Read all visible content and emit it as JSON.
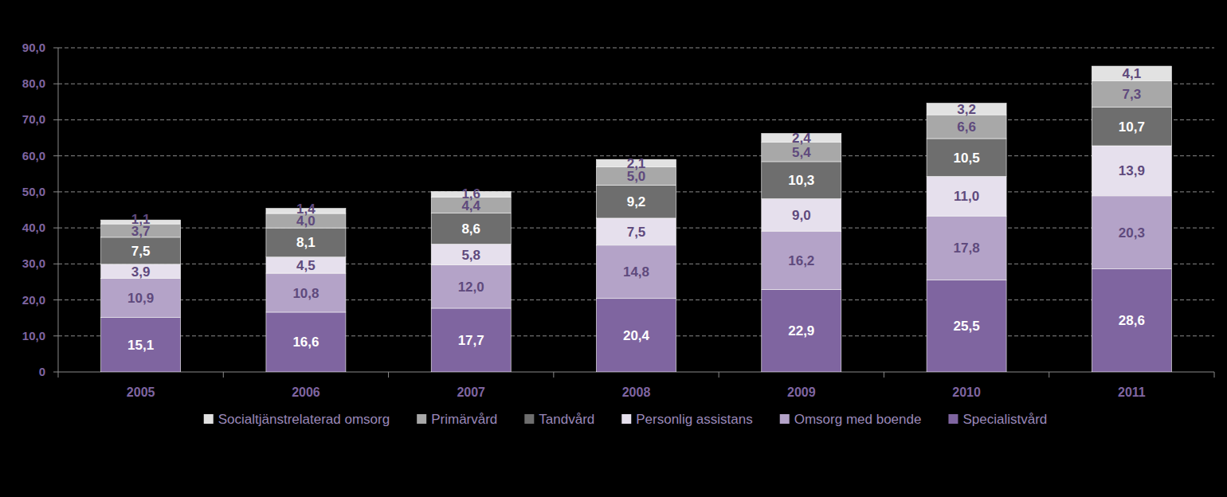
{
  "chart_data": {
    "type": "bar",
    "stacked": true,
    "data_labels": true,
    "grid": true,
    "legend": "bottom",
    "categories": [
      "2005",
      "2006",
      "2007",
      "2008",
      "2009",
      "2010",
      "2011"
    ],
    "ylim": [
      0,
      90
    ],
    "yticks": [
      0,
      {
        "value": 10,
        "label": "10,0"
      },
      {
        "value": 20,
        "label": "20,0"
      },
      {
        "value": 30,
        "label": "30,0"
      },
      {
        "value": 40,
        "label": "40,0"
      },
      {
        "value": 50,
        "label": "50,0"
      },
      {
        "value": 60,
        "label": "60,0"
      },
      {
        "value": 70,
        "label": "70,0"
      },
      {
        "value": 80,
        "label": "80,0"
      },
      {
        "value": 90,
        "label": "90,0"
      }
    ],
    "series": [
      {
        "name": "Specialistvård",
        "color": "#7f65a0",
        "values": [
          15.1,
          16.6,
          17.7,
          20.4,
          22.9,
          25.5,
          28.6
        ],
        "value_labels": [
          "15,1",
          "16,6",
          "17,7",
          "20,4",
          "22,9",
          "25,5",
          "28,6"
        ]
      },
      {
        "name": "Omsorg med boende",
        "color": "#b4a3c8",
        "values": [
          10.9,
          10.8,
          12.0,
          14.8,
          16.2,
          17.8,
          20.3
        ],
        "value_labels": [
          "10,9",
          "10,8",
          "12,0",
          "14,8",
          "16,2",
          "17,8",
          "20,3"
        ]
      },
      {
        "name": "Personlig assistans",
        "color": "#e6e0ed",
        "values": [
          3.9,
          4.5,
          5.8,
          7.5,
          9.0,
          11.0,
          13.9
        ],
        "value_labels": [
          "3,9",
          "4,5",
          "5,8",
          "7,5",
          "9,0",
          "11,0",
          "13,9"
        ]
      },
      {
        "name": "Tandvård",
        "color": "#6e6e6e",
        "values": [
          7.5,
          8.1,
          8.6,
          9.2,
          10.3,
          10.5,
          10.7
        ],
        "value_labels": [
          "7,5",
          "8,1",
          "8,6",
          "9,2",
          "10,3",
          "10,5",
          "10,7"
        ]
      },
      {
        "name": "Primärvård",
        "color": "#a8a8a8",
        "values": [
          3.7,
          4.0,
          4.4,
          5.0,
          5.4,
          6.6,
          7.3
        ],
        "value_labels": [
          "3,7",
          "4,0",
          "4,4",
          "5,0",
          "5,4",
          "6,6",
          "7,3"
        ]
      },
      {
        "name": "Socialtjänstrelaterad omsorg",
        "color": "#e2e2e2",
        "values": [
          1.1,
          1.4,
          1.6,
          2.1,
          2.4,
          3.2,
          4.1
        ],
        "value_labels": [
          "1,1",
          "1,4",
          "1,6",
          "2,1",
          "2,4",
          "3,2",
          "4,1"
        ]
      }
    ]
  }
}
